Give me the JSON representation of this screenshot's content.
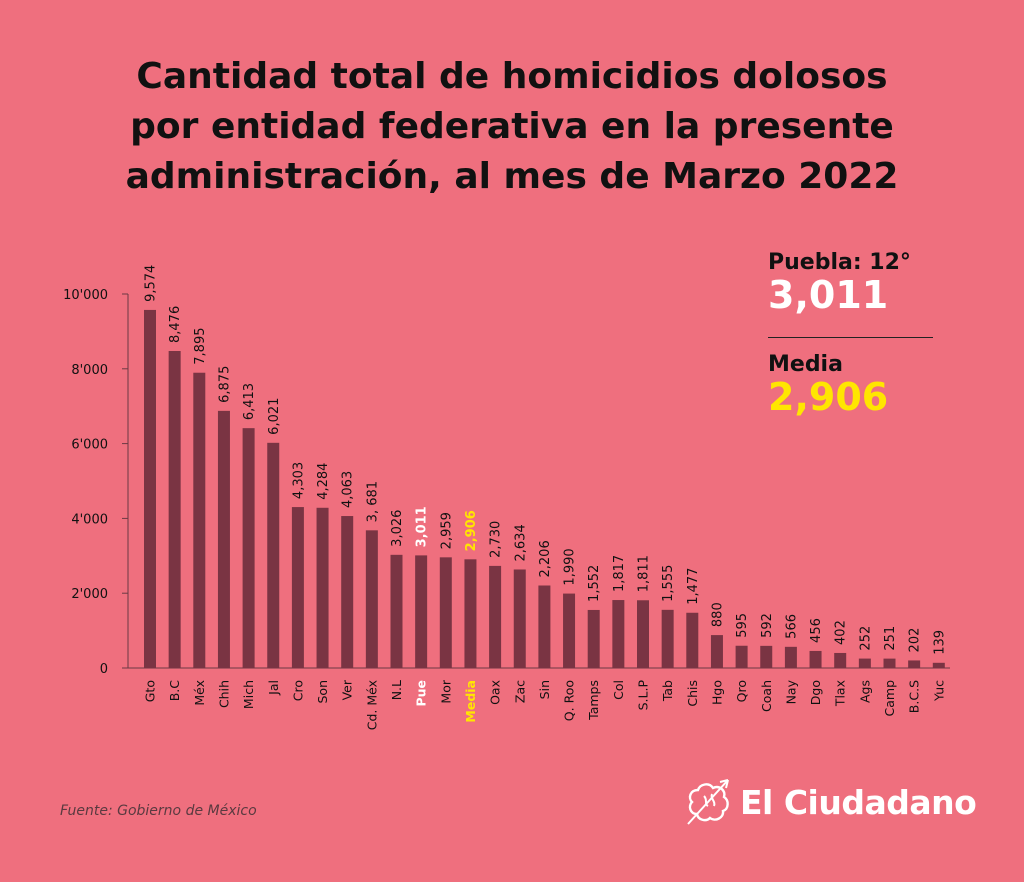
{
  "title_lines": [
    "Cantidad total de homicidios dolosos",
    "por entidad federativa en la presente",
    "administración, al mes de Marzo 2022"
  ],
  "info": {
    "puebla_label": "Puebla: 12°",
    "puebla_value": "3,011",
    "media_label": "Media",
    "media_value": "2,906"
  },
  "source": "Fuente: Gobierno de México",
  "logo_text": "El Ciudadano",
  "colors": {
    "background": "#ef6f7e",
    "bar": "#7a3443",
    "highlight_puebla": "#ffffff",
    "highlight_media": "#ffe600"
  },
  "chart_data": {
    "type": "bar",
    "categories": [
      "Gto",
      "B.C",
      "Méx",
      "Chih",
      "Mich",
      "Jal",
      "Cro",
      "Son",
      "Ver",
      "Cd. Méx",
      "N.L",
      "Pue",
      "Mor",
      "Media",
      "Oax",
      "Zac",
      "Sin",
      "Q. Roo",
      "Tamps",
      "Col",
      "S.L.P",
      "Tab",
      "Chis",
      "Hgo",
      "Qro",
      "Coah",
      "Nay",
      "Dgo",
      "Tlax",
      "Ags",
      "Camp",
      "B.C.S",
      "Yuc"
    ],
    "values": [
      9574,
      8476,
      7895,
      6875,
      6413,
      6021,
      4303,
      4284,
      4063,
      3681,
      3026,
      3011,
      2959,
      2906,
      2730,
      2634,
      2206,
      1990,
      1552,
      1817,
      1811,
      1555,
      1477,
      880,
      595,
      592,
      566,
      456,
      402,
      252,
      251,
      202,
      139
    ],
    "value_labels": [
      "9,574",
      "8,476",
      "7,895",
      "6,875",
      "6,413",
      "6,021",
      "4,303",
      "4,284",
      "4,063",
      "3, 681",
      "3,026",
      "3,011",
      "2,959",
      "2,906",
      "2,730",
      "2,634",
      "2,206",
      "1,990",
      "1,552",
      "1,817",
      "1,811",
      "1,555",
      "1,477",
      "880",
      "595",
      "592",
      "566",
      "456",
      "402",
      "252",
      "251",
      "202",
      "139"
    ],
    "highlight": {
      "Pue": "puebla",
      "Media": "media"
    },
    "y_ticks": [
      {
        "value": 0,
        "label": "0"
      },
      {
        "value": 2000,
        "label": "2'000"
      },
      {
        "value": 4000,
        "label": "4'000"
      },
      {
        "value": 6000,
        "label": "6'000"
      },
      {
        "value": 8000,
        "label": "8'000"
      },
      {
        "value": 10000,
        "label": "10'000"
      }
    ],
    "ylim": [
      0,
      10000
    ],
    "grid": false,
    "legend": "none"
  }
}
